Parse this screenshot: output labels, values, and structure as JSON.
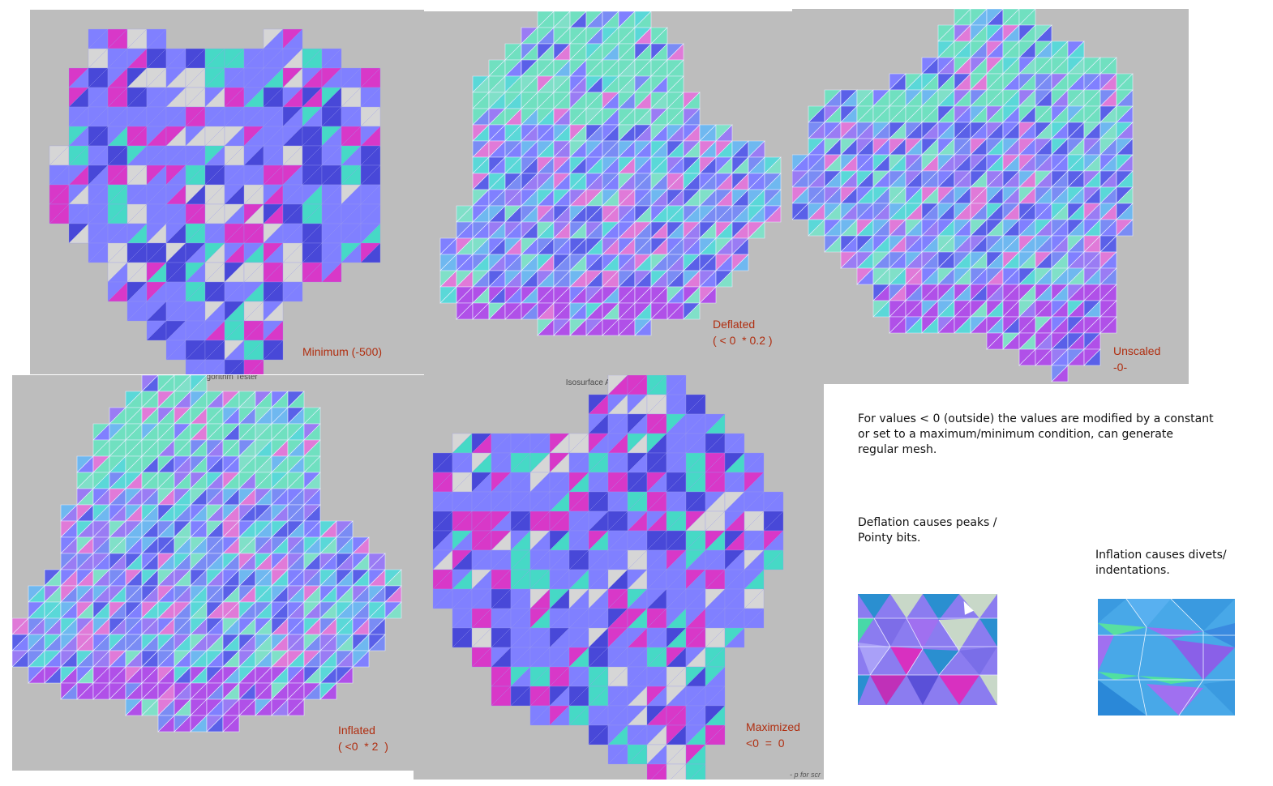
{
  "panels": [
    {
      "id": "minimum",
      "caption": "Minimum (-500)",
      "style": "blocky"
    },
    {
      "id": "deflated",
      "caption": "Deflated\n( < 0  * 0.2 )",
      "style": "smooth"
    },
    {
      "id": "unscaled",
      "caption": "Unscaled\n-0-",
      "style": "smooth"
    },
    {
      "id": "inflated",
      "caption": "Inflated\n( <0  * 2  )",
      "style": "smooth",
      "title": "Isosurface Algorithm Tester"
    },
    {
      "id": "maximized",
      "caption": "Maximized\n<0  =  0",
      "style": "blocky",
      "title": "Isosurface Algorithm Tester",
      "hint": "- p for scr"
    }
  ],
  "notes": {
    "intro": "For values < 0 (outside) the values are modified by a constant\nor set to a maximum/minimum condition, can generate\nregular mesh.",
    "deflation": "Deflation causes peaks /\nPointy bits.",
    "inflation": "Inflation causes divets/\nindentations."
  },
  "colors": {
    "background": "#bdbdbd",
    "caption": "#b02e10",
    "facet_main": "#8080ff",
    "facet_cyan": "#46d9c6",
    "facet_magenta": "#d838c8",
    "facet_blue": "#4848d8",
    "facet_gray": "#d6d6d6"
  }
}
